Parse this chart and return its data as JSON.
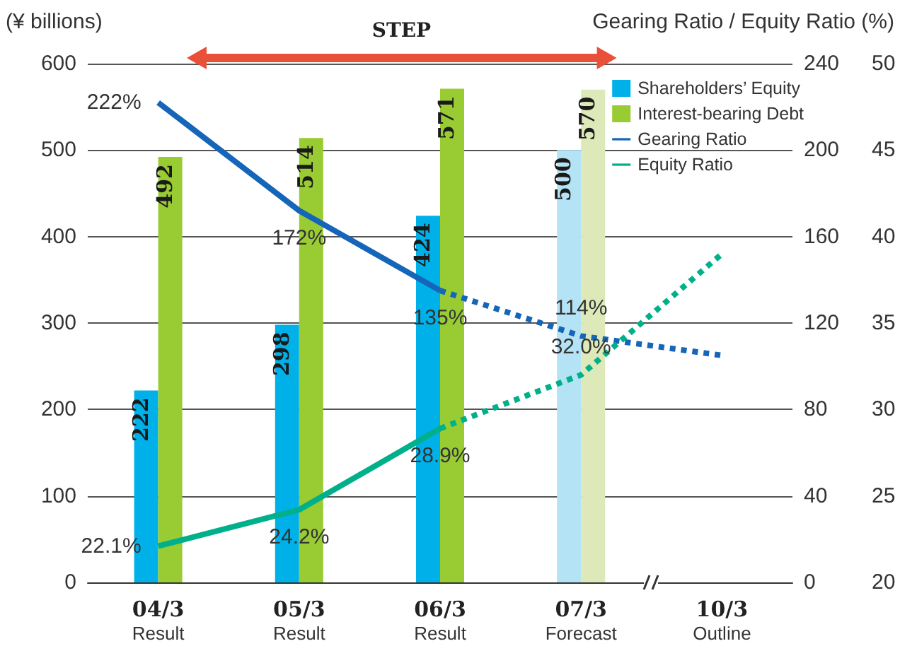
{
  "chart_data": {
    "type": "bar",
    "ylabel": "(¥ billions)",
    "y2label": "Gearing Ratio / Equity Ratio (%)",
    "annotations": [
      "STEP"
    ],
    "categories": [
      "04/3\nResult",
      "05/3\nResult",
      "06/3\nResult",
      "07/3\nForecast",
      "10/3\nOutline"
    ],
    "series": [
      {
        "name": "Shareholders’ Equity",
        "color": "#00b0e8",
        "colors": [
          "#00b0e8",
          "#00b0e8",
          "#00b0e8",
          "#b3e3f5",
          "#b3e3f5"
        ],
        "values": [
          222,
          298,
          424,
          500,
          null
        ],
        "value_labels": [
          "222",
          "298",
          "424",
          "500",
          null
        ]
      },
      {
        "name": "Interest-bearing Debt",
        "color": "#99cc33",
        "colors": [
          "#99cc33",
          "#99cc33",
          "#99cc33",
          "#dde9b8",
          "#dde9b8"
        ],
        "values": [
          492,
          514,
          571,
          570,
          null
        ],
        "value_labels": [
          "492",
          "514",
          "571",
          "570",
          null
        ]
      },
      {
        "name": "Gearing Ratio",
        "type": "line",
        "axis": "y2",
        "color": "#1565b8",
        "line_style": "solid",
        "values": [
          222,
          172,
          135,
          null,
          null
        ],
        "value_labels": [
          "222%",
          "172%",
          "135%",
          null,
          null
        ]
      },
      {
        "type": "line",
        "axis": "y2",
        "color": "#1565b8",
        "line_style": "dotted",
        "values": [
          null,
          null,
          135,
          114,
          105
        ],
        "value_labels": [
          null,
          null,
          null,
          "114%",
          null
        ]
      },
      {
        "name": "Equity Ratio",
        "type": "line",
        "axis": "y3",
        "color": "#00b08a",
        "line_style": "solid",
        "values": [
          22.1,
          24.2,
          28.9,
          null,
          null
        ],
        "value_labels": [
          "22.1%",
          "24.2%",
          "28.9%",
          null,
          null
        ]
      },
      {
        "type": "line",
        "axis": "y3",
        "color": "#00b08a",
        "line_style": "dotted",
        "values": [
          null,
          null,
          28.9,
          32.0,
          39
        ],
        "value_labels": [
          null,
          null,
          null,
          "32.0%",
          null
        ]
      }
    ],
    "ylim": [
      0,
      600
    ],
    "yticks": [
      0,
      100,
      200,
      300,
      400,
      500,
      600
    ],
    "y2lim": [
      0,
      240
    ],
    "y2ticks": [
      0,
      40,
      80,
      120,
      160,
      200,
      240
    ],
    "y3lim": [
      20,
      50
    ],
    "y3ticks": [
      20,
      25,
      30,
      35,
      40,
      45,
      50
    ],
    "grid": "y",
    "legend": "top right",
    "marker": "none"
  }
}
